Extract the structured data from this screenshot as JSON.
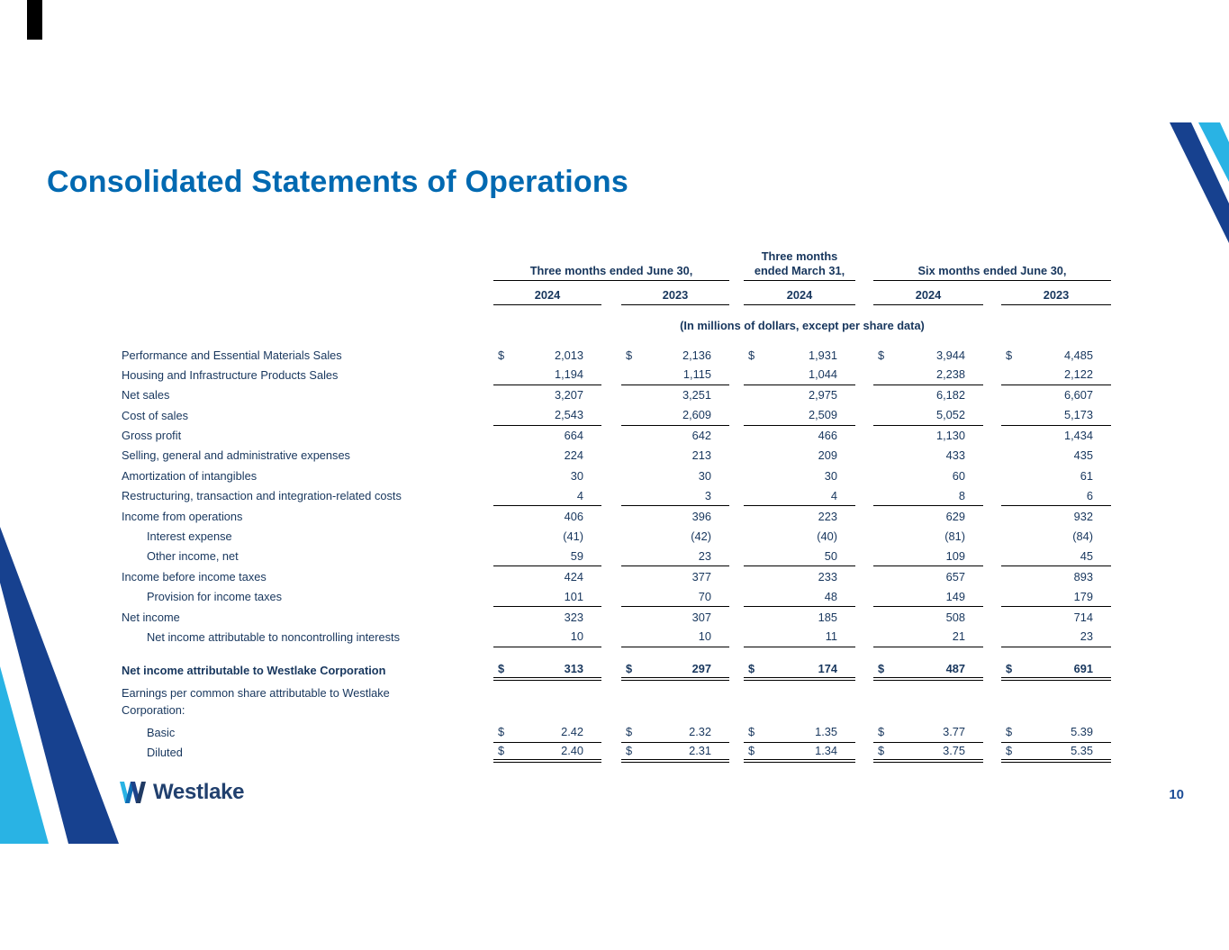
{
  "page": {
    "title": "Consolidated Statements of Operations",
    "page_number": "10",
    "logo_text": "Westlake"
  },
  "colors": {
    "title_blue": "#0069b1",
    "text_navy": "#17365d",
    "cyan": "#29b3e4",
    "ribbon_navy": "#17418f"
  },
  "table": {
    "column_groups": [
      {
        "label": "Three months ended June 30,",
        "years": [
          "2024",
          "2023"
        ]
      },
      {
        "label": "Three months ended March 31,",
        "years": [
          "2024"
        ]
      },
      {
        "label": "Six months ended June 30,",
        "years": [
          "2024",
          "2023"
        ]
      }
    ],
    "note": "(In millions of dollars, except per share data)",
    "rows": [
      {
        "label": "Performance and Essential Materials Sales",
        "dollar": true,
        "values": [
          "2,013",
          "2,136",
          "1,931",
          "3,944",
          "4,485"
        ]
      },
      {
        "label": "Housing and Infrastructure Products Sales",
        "values": [
          "1,194",
          "1,115",
          "1,044",
          "2,238",
          "2,122"
        ],
        "underline": "single"
      },
      {
        "label": "Net sales",
        "values": [
          "3,207",
          "3,251",
          "2,975",
          "6,182",
          "6,607"
        ]
      },
      {
        "label": "Cost of sales",
        "values": [
          "2,543",
          "2,609",
          "2,509",
          "5,052",
          "5,173"
        ],
        "underline": "single"
      },
      {
        "label": "Gross profit",
        "values": [
          "664",
          "642",
          "466",
          "1,130",
          "1,434"
        ]
      },
      {
        "label": "Selling, general and administrative expenses",
        "values": [
          "224",
          "213",
          "209",
          "433",
          "435"
        ]
      },
      {
        "label": "Amortization of intangibles",
        "values": [
          "30",
          "30",
          "30",
          "60",
          "61"
        ]
      },
      {
        "label": "Restructuring, transaction and integration-related costs",
        "values": [
          "4",
          "3",
          "4",
          "8",
          "6"
        ],
        "underline": "single"
      },
      {
        "label": "Income from operations",
        "values": [
          "406",
          "396",
          "223",
          "629",
          "932"
        ]
      },
      {
        "label": "Interest expense",
        "indent": true,
        "values": [
          "(41)",
          "(42)",
          "(40)",
          "(81)",
          "(84)"
        ]
      },
      {
        "label": "Other income, net",
        "indent": true,
        "values": [
          "59",
          "23",
          "50",
          "109",
          "45"
        ],
        "underline": "single"
      },
      {
        "label": "Income before income taxes",
        "values": [
          "424",
          "377",
          "233",
          "657",
          "893"
        ]
      },
      {
        "label": "Provision for income taxes",
        "indent": true,
        "values": [
          "101",
          "70",
          "48",
          "149",
          "179"
        ],
        "underline": "single"
      },
      {
        "label": "Net income",
        "values": [
          "323",
          "307",
          "185",
          "508",
          "714"
        ]
      },
      {
        "label": "Net income attributable to noncontrolling interests",
        "indent": true,
        "values": [
          "10",
          "10",
          "11",
          "21",
          "23"
        ],
        "underline": "single"
      },
      {
        "label": "Net income attributable to Westlake Corporation",
        "bold": true,
        "dollar": true,
        "values": [
          "313",
          "297",
          "174",
          "487",
          "691"
        ],
        "underline": "double",
        "spacer_before": true
      },
      {
        "label": "Earnings per common share attributable to Westlake Corporation:",
        "section": true
      },
      {
        "label": "Basic",
        "indent": true,
        "dollar": true,
        "values": [
          "2.42",
          "2.32",
          "1.35",
          "3.77",
          "5.39"
        ],
        "underline": "single"
      },
      {
        "label": "Diluted",
        "indent": true,
        "dollar": true,
        "values": [
          "2.40",
          "2.31",
          "1.34",
          "3.75",
          "5.35"
        ],
        "underline": "double"
      }
    ]
  }
}
